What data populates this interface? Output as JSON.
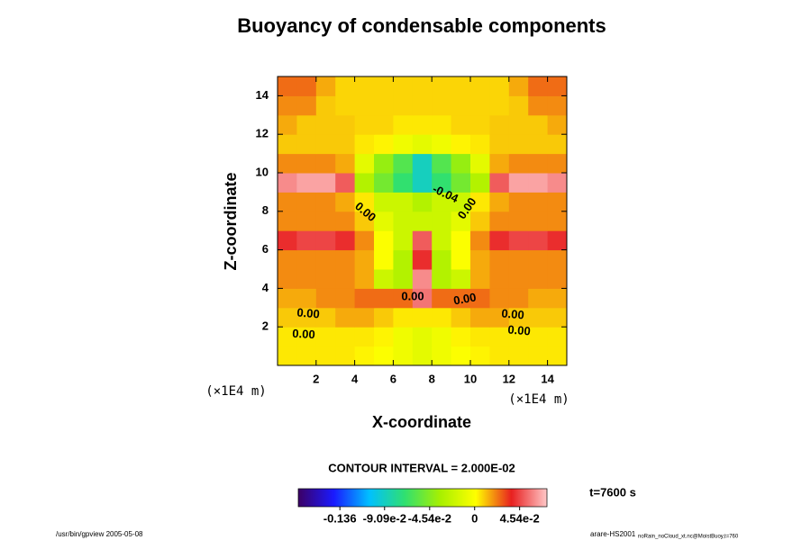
{
  "chart_data": {
    "type": "contour",
    "title": "Buoyancy of condensable components",
    "x_label": "X-coordinate",
    "y_label": "Z-coordinate",
    "x_unit": "(×1E4 m)",
    "y_unit": "(×1E4 m)",
    "contour_interval": "CONTOUR INTERVAL = 2.000E-02",
    "time_label": "t=7600 s",
    "footer_left": "/usr/bin/gpview 2005-05-08",
    "footer_right": "arare-HS2001",
    "footer_right_small": "noRain_noCloud_xt.nc@MoistBuoy,t=760",
    "contour_labels": [
      "0.00",
      "0.00",
      "-0.04",
      "0.00",
      "0.00",
      "0.00",
      "0.00",
      "0.00",
      "0.00"
    ],
    "xlim": [
      0,
      15
    ],
    "ylim": [
      0,
      15
    ],
    "xticks": [
      2,
      4,
      6,
      8,
      10,
      12,
      14
    ],
    "yticks": [
      2,
      4,
      6,
      8,
      10,
      12,
      14
    ],
    "x": [
      0.5,
      1.5,
      2.5,
      3.5,
      4.5,
      5.5,
      6.5,
      7.5,
      8.5,
      9.5,
      10.5,
      11.5,
      12.5,
      13.5,
      14.5
    ],
    "z": [
      0.5,
      1.5,
      2.5,
      3.5,
      4.5,
      5.5,
      6.5,
      7.5,
      8.5,
      9.5,
      10.5,
      11.5,
      12.5,
      13.5,
      14.5
    ],
    "values": [
      [
        0.005,
        0.005,
        0.005,
        0.005,
        0.003,
        0,
        -0.005,
        -0.01,
        -0.005,
        0,
        0.003,
        0.005,
        0.005,
        0.005,
        0.005
      ],
      [
        0.005,
        0.005,
        0.005,
        0.005,
        0.005,
        0.003,
        -0.005,
        -0.01,
        -0.005,
        0.003,
        0.005,
        0.005,
        0.005,
        0.005,
        0.005
      ],
      [
        0.01,
        0.01,
        0.01,
        0.015,
        0.015,
        0.01,
        0.005,
        0.005,
        0.005,
        0.01,
        0.015,
        0.015,
        0.01,
        0.01,
        0.01
      ],
      [
        0.015,
        0.015,
        0.02,
        0.02,
        0.025,
        0.025,
        0.025,
        0.055,
        0.025,
        0.025,
        0.025,
        0.02,
        0.02,
        0.015,
        0.015
      ],
      [
        0.02,
        0.02,
        0.02,
        0.02,
        0.015,
        -0.02,
        -0.03,
        0.06,
        -0.03,
        -0.02,
        0.015,
        0.02,
        0.02,
        0.02,
        0.02
      ],
      [
        0.02,
        0.02,
        0.02,
        0.02,
        0.015,
        0,
        -0.03,
        0.04,
        -0.03,
        0,
        0.015,
        0.02,
        0.02,
        0.02,
        0.02
      ],
      [
        0.04,
        0.045,
        0.045,
        0.04,
        0.02,
        0,
        -0.02,
        0.05,
        -0.02,
        0,
        0.02,
        0.04,
        0.045,
        0.045,
        0.04
      ],
      [
        0.02,
        0.02,
        0.02,
        0.02,
        0.01,
        -0.01,
        -0.02,
        -0.02,
        -0.02,
        -0.01,
        0.01,
        0.02,
        0.02,
        0.02,
        0.02
      ],
      [
        0.02,
        0.02,
        0.02,
        0.015,
        0.005,
        -0.02,
        -0.02,
        -0.03,
        -0.02,
        -0.02,
        0.005,
        0.015,
        0.02,
        0.02,
        0.02
      ],
      [
        0.06,
        0.065,
        0.065,
        0.05,
        -0.03,
        -0.05,
        -0.07,
        -0.09,
        -0.07,
        -0.05,
        -0.03,
        0.05,
        0.065,
        0.065,
        0.06
      ],
      [
        0.02,
        0.02,
        0.02,
        0.015,
        -0.01,
        -0.04,
        -0.06,
        -0.09,
        -0.06,
        -0.04,
        -0.01,
        0.015,
        0.02,
        0.02,
        0.02
      ],
      [
        0.01,
        0.01,
        0.01,
        0.01,
        0.005,
        0.003,
        -0.005,
        -0.01,
        -0.005,
        0.003,
        0.005,
        0.01,
        0.01,
        0.01,
        0.01
      ],
      [
        0.015,
        0.01,
        0.01,
        0.01,
        0.008,
        0.008,
        0.005,
        0.005,
        0.005,
        0.008,
        0.008,
        0.01,
        0.01,
        0.01,
        0.015
      ],
      [
        0.02,
        0.02,
        0.01,
        0.008,
        0.008,
        0.008,
        0.008,
        0.008,
        0.008,
        0.008,
        0.008,
        0.008,
        0.01,
        0.02,
        0.02
      ],
      [
        0.025,
        0.025,
        0.015,
        0.008,
        0.008,
        0.008,
        0.008,
        0.008,
        0.008,
        0.008,
        0.008,
        0.008,
        0.015,
        0.025,
        0.025
      ]
    ],
    "clim": [
      -0.178,
      0.073
    ],
    "colormap": [
      "#3c0064",
      "#1a1aff",
      "#00c0ff",
      "#30e070",
      "#a8f000",
      "#ffff00",
      "#e82020",
      "#ffc8c8"
    ],
    "cticks": [
      -0.136,
      {
        "value": -0.0909,
        "label": "-9.09e-2"
      },
      {
        "value": -0.0454,
        "label": "-4.54e-2"
      },
      0,
      {
        "value": 0.0454,
        "label": "4.54e-2"
      }
    ]
  }
}
